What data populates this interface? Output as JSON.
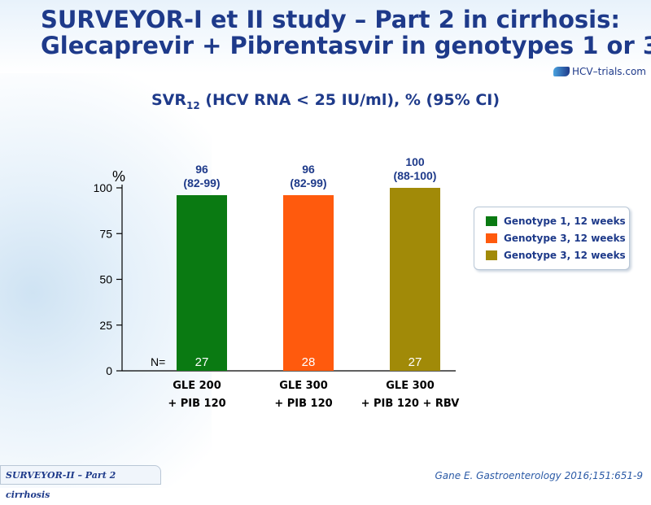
{
  "slide": {
    "title_line1": "SURVEYOR-I et II study – Part 2 in cirrhosis:",
    "title_line2": "Glecaprevir + Pibrentasvir in genotypes 1 or 3",
    "logo_text": "HCV–trials.com",
    "subtitle_pre": "SVR",
    "subtitle_sub": "12",
    "subtitle_post": " (HCV RNA < 25 IU/ml), % (95% CI)",
    "footer_tag": "SURVEYOR-II – Part 2 cirrhosis",
    "reference": "Gane E. Gastroenterology 2016;151:651-9"
  },
  "legend": [
    {
      "label": "Genotype 1, 12 weeks",
      "color": "#0a7a12"
    },
    {
      "label": "Genotype 3, 12 weeks",
      "color": "#ff5a0d"
    },
    {
      "label": "Genotype 3, 12 weeks",
      "color": "#a18a08"
    }
  ],
  "chart_data": {
    "type": "bar",
    "ylabel": "%",
    "ylim": [
      0,
      100
    ],
    "yticks": [
      0,
      25,
      50,
      75,
      100
    ],
    "n_label": "N=",
    "categories": [
      [
        "GLE 200",
        "+ PIB 120"
      ],
      [
        "GLE 300",
        "+ PIB 120"
      ],
      [
        "GLE 300",
        "+ PIB 120 + RBV"
      ]
    ],
    "values": [
      96,
      96,
      100
    ],
    "value_labels": [
      "96",
      "96",
      "100"
    ],
    "ci_labels": [
      "(82-99)",
      "(82-99)",
      "(88-100)"
    ],
    "n_values": [
      "27",
      "28",
      "27"
    ],
    "colors": [
      "#0a7a12",
      "#ff5a0d",
      "#a18a08"
    ]
  }
}
